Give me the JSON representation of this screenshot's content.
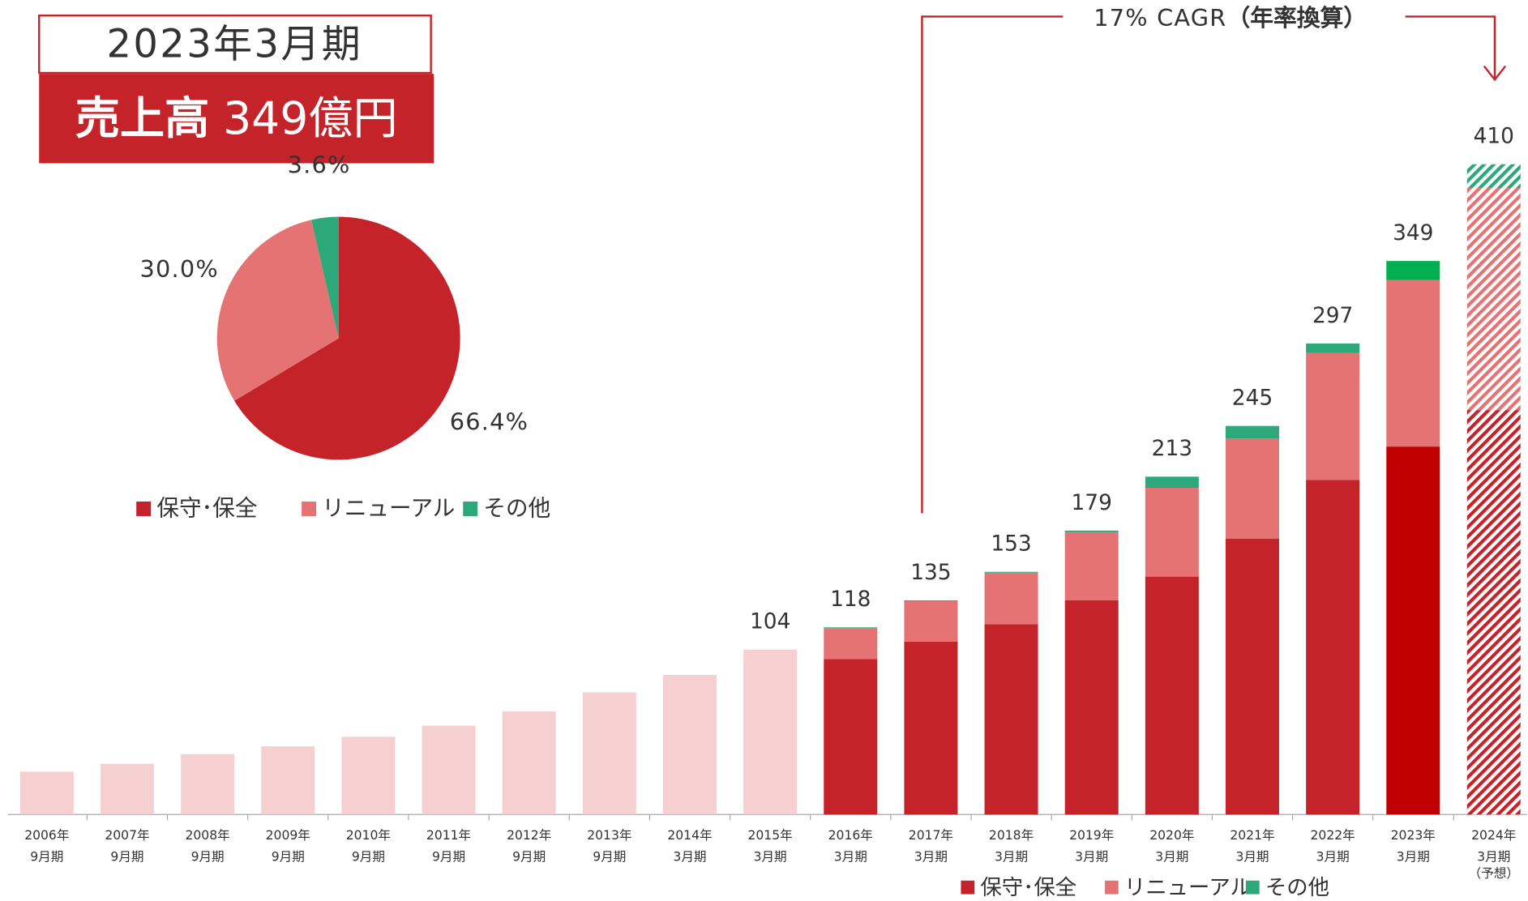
{
  "chart_data": [
    {
      "type": "bar",
      "annotation": "17% CAGR",
      "annotation_note": "（年率換算）",
      "categories": [
        [
          "2006年",
          "9月期"
        ],
        [
          "2007年",
          "9月期"
        ],
        [
          "2008年",
          "9月期"
        ],
        [
          "2009年",
          "9月期"
        ],
        [
          "2010年",
          "9月期"
        ],
        [
          "2011年",
          "9月期"
        ],
        [
          "2012年",
          "9月期"
        ],
        [
          "2013年",
          "9月期"
        ],
        [
          "2014年",
          "3月期"
        ],
        [
          "2015年",
          "3月期"
        ],
        [
          "2016年",
          "3月期"
        ],
        [
          "2017年",
          "3月期"
        ],
        [
          "2018年",
          "3月期"
        ],
        [
          "2019年",
          "3月期"
        ],
        [
          "2020年",
          "3月期"
        ],
        [
          "2021年",
          "3月期"
        ],
        [
          "2022年",
          "3月期"
        ],
        [
          "2023年",
          "3月期"
        ],
        [
          "2024年",
          "3月期",
          "（予想）"
        ]
      ],
      "totals": [
        27,
        32,
        38,
        43,
        49,
        56,
        65,
        77,
        88,
        104,
        118,
        135,
        153,
        179,
        213,
        245,
        297,
        349,
        410
      ],
      "value_labels": [
        null,
        null,
        null,
        null,
        null,
        null,
        null,
        null,
        null,
        "104",
        "118",
        "135",
        "153",
        "179",
        "213",
        "245",
        "297",
        "349",
        "410"
      ],
      "total_color": "#f6d0d1",
      "series": [
        {
          "name": "保守･保全",
          "color": "#c4232a",
          "highlight_color": "#c00000",
          "values": [
            null,
            null,
            null,
            null,
            null,
            null,
            null,
            null,
            null,
            null,
            98,
            109,
            120,
            135,
            150,
            174,
            211,
            232,
            255
          ]
        },
        {
          "name": "リニューアル",
          "color": "#e57373",
          "highlight_color": "#e57373",
          "values": [
            null,
            null,
            null,
            null,
            null,
            null,
            null,
            null,
            null,
            null,
            19.5,
            25.5,
            32.5,
            43,
            56,
            63,
            80,
            105,
            140
          ]
        },
        {
          "name": "その他",
          "color": "#2ca87a",
          "highlight_color": "#00b050",
          "values": [
            null,
            null,
            null,
            null,
            null,
            null,
            null,
            null,
            null,
            null,
            0.5,
            0.5,
            0.5,
            1,
            7,
            8,
            6,
            12,
            15
          ]
        }
      ],
      "highlight_index": 17,
      "hatched_index": 18,
      "legend": "bottom-right"
    },
    {
      "type": "pie",
      "title": "2023年3月期",
      "subtitle": "売上高",
      "subtitle_value": "349億円",
      "categories": [
        "保守･保全",
        "リニューアル",
        "その他"
      ],
      "values": [
        66.4,
        30.0,
        3.6
      ],
      "value_labels": [
        "66.4%",
        "30.0%",
        "3.6%"
      ],
      "colors": [
        "#c4232a",
        "#e57373",
        "#2ca87a"
      ]
    }
  ]
}
